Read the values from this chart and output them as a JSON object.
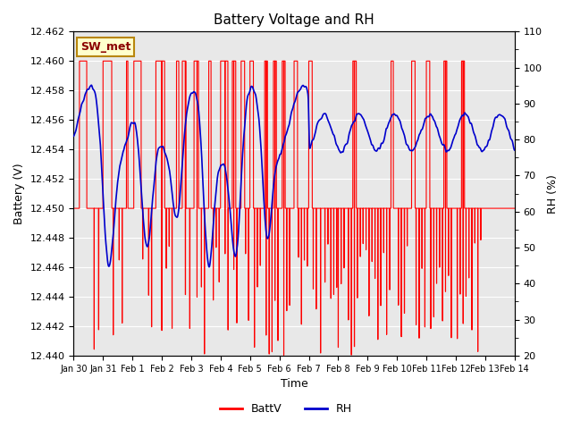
{
  "title": "Battery Voltage and RH",
  "xlabel": "Time",
  "ylabel_left": "Battery (V)",
  "ylabel_right": "RH (%)",
  "ylim_left": [
    12.44,
    12.462
  ],
  "ylim_right": [
    20,
    110
  ],
  "yticks_left": [
    12.44,
    12.442,
    12.444,
    12.446,
    12.448,
    12.45,
    12.452,
    12.454,
    12.456,
    12.458,
    12.46,
    12.462
  ],
  "yticks_right": [
    20,
    30,
    40,
    50,
    60,
    70,
    80,
    90,
    100,
    110
  ],
  "xtick_labels": [
    "Jan 30",
    "Jan 31",
    "Feb 1",
    "Feb 2",
    "Feb 3",
    "Feb 4",
    "Feb 5",
    "Feb 6",
    "Feb 7",
    "Feb 8",
    "Feb 9",
    "Feb 10",
    "Feb 11",
    "Feb 12",
    "Feb 13",
    "Feb 14"
  ],
  "station_label": "SW_met",
  "legend_entries": [
    "BattV",
    "RH"
  ],
  "batt_color": "#ff0000",
  "rh_color": "#0000cc",
  "bg_color": "#e8e8e8",
  "fig_bg": "#ffffff",
  "grid_color": "#ffffff"
}
